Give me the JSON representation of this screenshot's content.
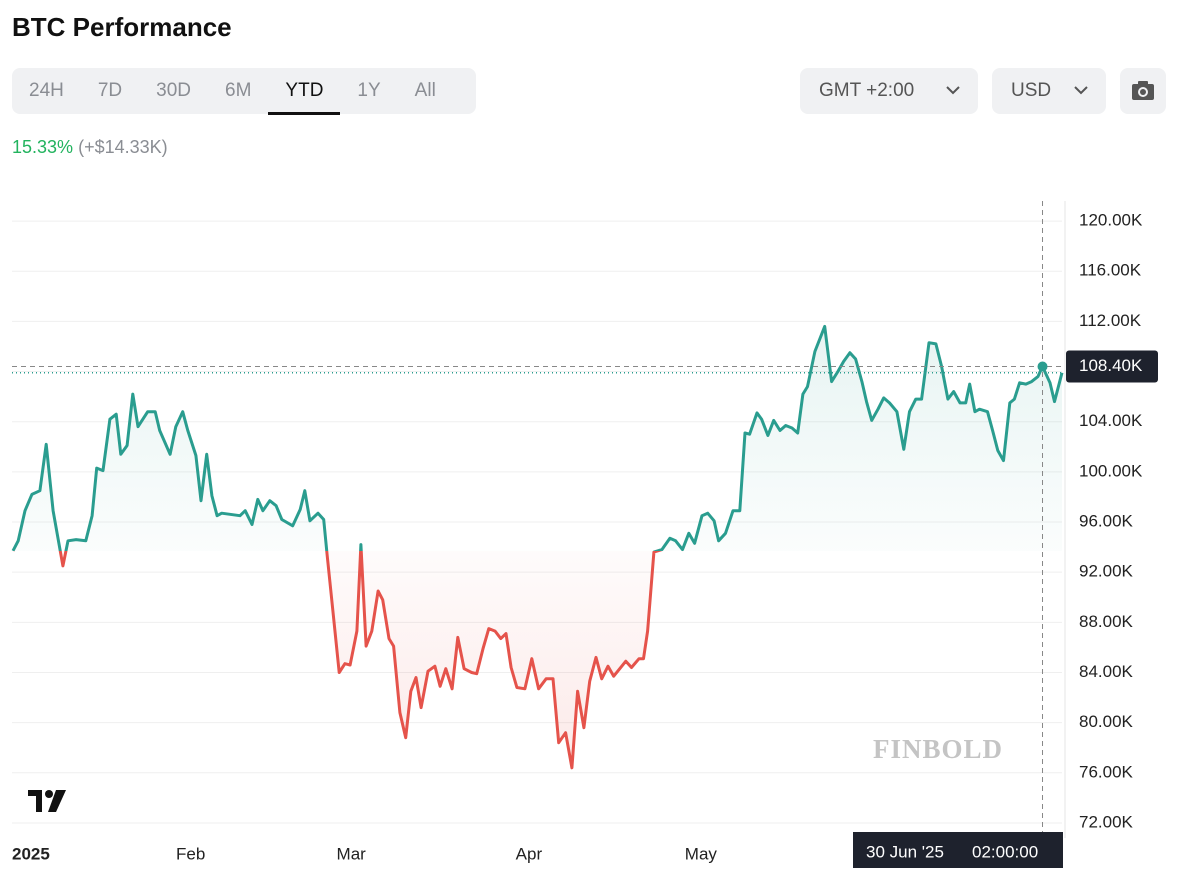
{
  "header": {
    "title": "BTC Performance"
  },
  "tabs": {
    "items": [
      "24H",
      "7D",
      "30D",
      "6M",
      "YTD",
      "1Y",
      "All"
    ],
    "active": "YTD"
  },
  "controls": {
    "timezone": "GMT +2:00",
    "currency": "USD"
  },
  "change": {
    "percent": "15.33%",
    "amount": "(+$14.33K)"
  },
  "watermark": "FINBOLD",
  "chart_data": {
    "type": "line",
    "color": "#2a9d8f",
    "down_color": "#e5534b",
    "x": [
      0,
      0.9,
      2.1,
      3.3,
      4.7,
      5.8,
      7.0,
      8.7,
      9.6,
      11.0,
      12.7,
      13.8,
      14.6,
      15.7,
      16.9,
      18.0,
      18.8,
      19.9,
      20.9,
      21.8,
      23.5,
      24.8,
      25.6,
      27.4,
      28.4,
      29.6,
      30.5,
      31.9,
      32.8,
      33.8,
      34.7,
      35.6,
      36.4,
      39.6,
      40.5,
      41.7,
      42.7,
      43.6,
      44.8,
      45.9,
      46.9,
      48.8,
      50.1,
      50.9,
      51.8,
      53.2,
      54.2,
      54.8,
      55.8,
      56.9,
      57.9,
      58.8,
      60.0,
      60.7,
      61.6,
      62.6,
      63.7,
      64.5,
      65.6,
      66.4,
      67.5,
      68.5,
      69.4,
      70.3,
      71.2,
      72.4,
      73.6,
      74.5,
      75.5,
      76.6,
      77.6,
      78.7,
      80.0,
      80.9,
      82.0,
      83.0,
      84.1,
      85.1,
      86.0,
      86.9,
      87.9,
      89.3,
      90.5,
      91.7,
      93.0,
      94.2,
      95.2,
      96.4,
      97.5,
      98.5,
      99.6,
      100.6,
      101.7,
      102.7,
      103.8,
      104.8,
      106.9,
      107.9,
      109.2,
      110.0,
      110.7,
      111.8,
      113.2,
      114.6,
      115.6,
      116.8,
      117.9,
      118.9,
      120.2,
      121.2,
      122.3,
      123.1,
      124.3,
      125.6,
      126.8,
      127.7,
      128.5,
      129.8,
      130.6,
      131.7,
      132.7,
      133.8,
      134.8,
      135.9,
      136.9,
      137.8,
      138.6,
      139.9,
      141.6,
      142.8,
      143.9,
      144.9,
      146.0,
      147.0,
      148.1,
      148.9,
      149.8,
      150.9,
      151.9,
      152.9,
      154.2,
      155.4,
      156.4,
      157.5,
      158.5,
      159.8,
      161.0,
      162.0,
      163.1,
      164.1,
      165.2,
      166.2,
      166.9,
      167.8,
      168.6,
      170.0,
      170.9,
      171.8,
      172.8,
      173.9,
      174.7,
      175.6,
      176.7,
      177.7,
      178.8,
      179.6,
      180.9,
      181.7,
      183.0
    ],
    "values": [
      93.7,
      94.5,
      96.9,
      98.2,
      98.5,
      102.2,
      96.9,
      92.5,
      94.5,
      94.6,
      94.5,
      96.5,
      100.3,
      100.1,
      104.2,
      104.6,
      101.4,
      102.1,
      106.2,
      103.6,
      104.8,
      104.8,
      103.3,
      101.4,
      103.6,
      104.8,
      103.3,
      101.3,
      97.7,
      101.4,
      98.1,
      96.5,
      96.7,
      96.5,
      96.9,
      95.8,
      97.8,
      96.9,
      97.7,
      97.3,
      96.2,
      95.7,
      97.0,
      98.5,
      96.1,
      96.7,
      96.2,
      93.4,
      88.9,
      84.0,
      84.7,
      84.6,
      87.3,
      94.2,
      86.1,
      87.3,
      90.5,
      89.8,
      86.7,
      86.1,
      80.8,
      78.8,
      82.5,
      83.6,
      81.2,
      84.1,
      84.5,
      82.9,
      84.3,
      82.7,
      86.8,
      84.3,
      84.0,
      83.9,
      85.9,
      87.5,
      87.3,
      86.7,
      87.1,
      84.4,
      82.8,
      82.7,
      85.1,
      82.7,
      83.5,
      83.5,
      78.4,
      79.2,
      76.4,
      82.5,
      79.6,
      83.3,
      85.2,
      83.5,
      84.5,
      83.7,
      84.9,
      84.4,
      85.1,
      85.1,
      87.3,
      93.6,
      93.8,
      94.7,
      94.5,
      93.8,
      95.1,
      94.3,
      96.5,
      96.7,
      96.1,
      94.5,
      95.1,
      96.9,
      96.9,
      103.1,
      103.0,
      104.7,
      104.2,
      102.9,
      104.1,
      103.3,
      103.7,
      103.5,
      103.1,
      106.2,
      106.8,
      109.6,
      111.6,
      107.2,
      108.0,
      108.8,
      109.5,
      109.0,
      107.2,
      105.6,
      104.1,
      105.0,
      105.9,
      105.5,
      104.8,
      101.8,
      104.8,
      105.8,
      105.8,
      110.3,
      110.2,
      108.4,
      105.8,
      106.4,
      105.5,
      105.5,
      107.0,
      104.8,
      105.0,
      104.8,
      103.3,
      101.7,
      100.9,
      105.5,
      105.8,
      107.1,
      107.0,
      107.2,
      107.6,
      108.4,
      107.1,
      105.6,
      107.9
    ],
    "xlim": [
      0,
      183
    ],
    "xticks": [
      {
        "value": 0,
        "label": "2025"
      },
      {
        "value": 31,
        "label": "Feb"
      },
      {
        "value": 59,
        "label": "Mar"
      },
      {
        "value": 90,
        "label": "Apr"
      },
      {
        "value": 120,
        "label": "May"
      }
    ],
    "ylim": [
      70.8,
      121.6
    ],
    "yticks": [
      {
        "value": 72,
        "label": "72.00K"
      },
      {
        "value": 76,
        "label": "76.00K"
      },
      {
        "value": 80,
        "label": "80.00K"
      },
      {
        "value": 84,
        "label": "84.00K"
      },
      {
        "value": 88,
        "label": "88.00K"
      },
      {
        "value": 92,
        "label": "92.00K"
      },
      {
        "value": 96,
        "label": "96.00K"
      },
      {
        "value": 100,
        "label": "100.00K"
      },
      {
        "value": 104,
        "label": "104.00K"
      },
      {
        "value": 108,
        "label": "108.00K"
      },
      {
        "value": 112,
        "label": "112.00K"
      },
      {
        "value": 116,
        "label": "116.00K"
      },
      {
        "value": 120,
        "label": "120.00K"
      }
    ],
    "grid": true,
    "cursor": {
      "x": 179.6,
      "value": 108.4,
      "value_label": "108.40K",
      "date_label": "30 Jun '25",
      "time_label": "02:00:00"
    }
  }
}
